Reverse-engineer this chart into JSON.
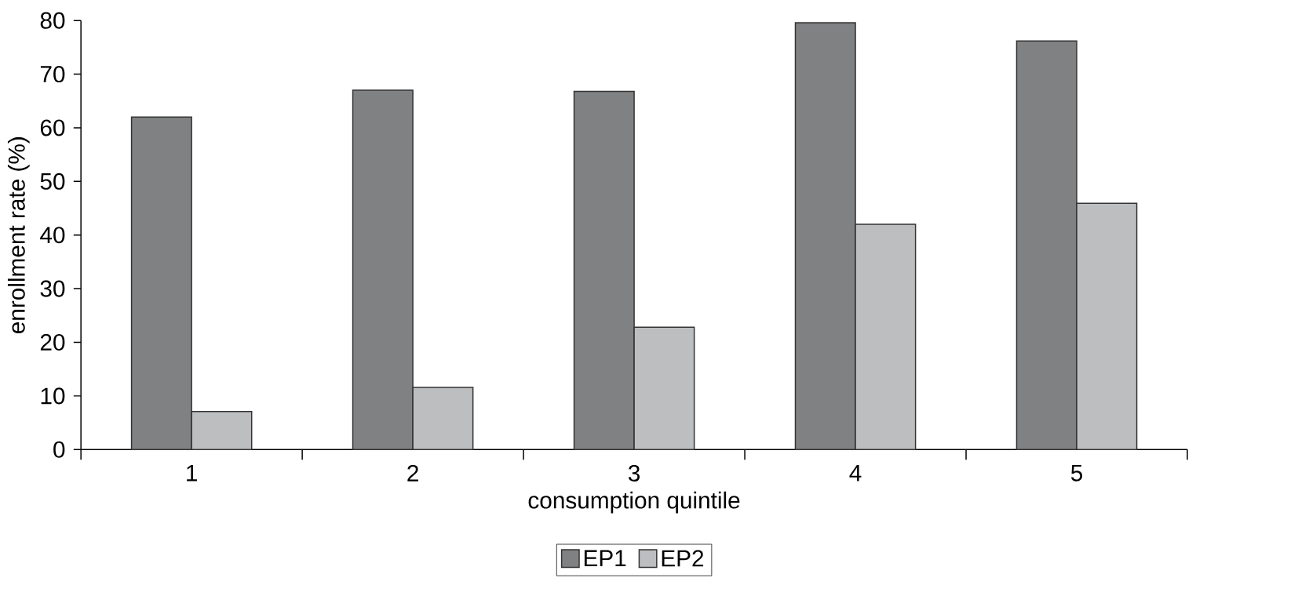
{
  "chart_data": {
    "type": "bar",
    "xlabel": "consumption quintile",
    "ylabel": "enrollment rate (%)",
    "categories": [
      "1",
      "2",
      "3",
      "4",
      "5"
    ],
    "series": [
      {
        "name": "EP1",
        "color": "#808183",
        "values": [
          62,
          67,
          66.8,
          79.6,
          76.2
        ]
      },
      {
        "name": "EP2",
        "color": "#bdbec0",
        "values": [
          7.1,
          11.6,
          22.8,
          42.0,
          45.9
        ]
      }
    ],
    "ylim": [
      0,
      80
    ],
    "yticks": [
      0,
      10,
      20,
      30,
      40,
      50,
      60,
      70,
      80
    ],
    "grid": false,
    "legend": "bottom"
  }
}
